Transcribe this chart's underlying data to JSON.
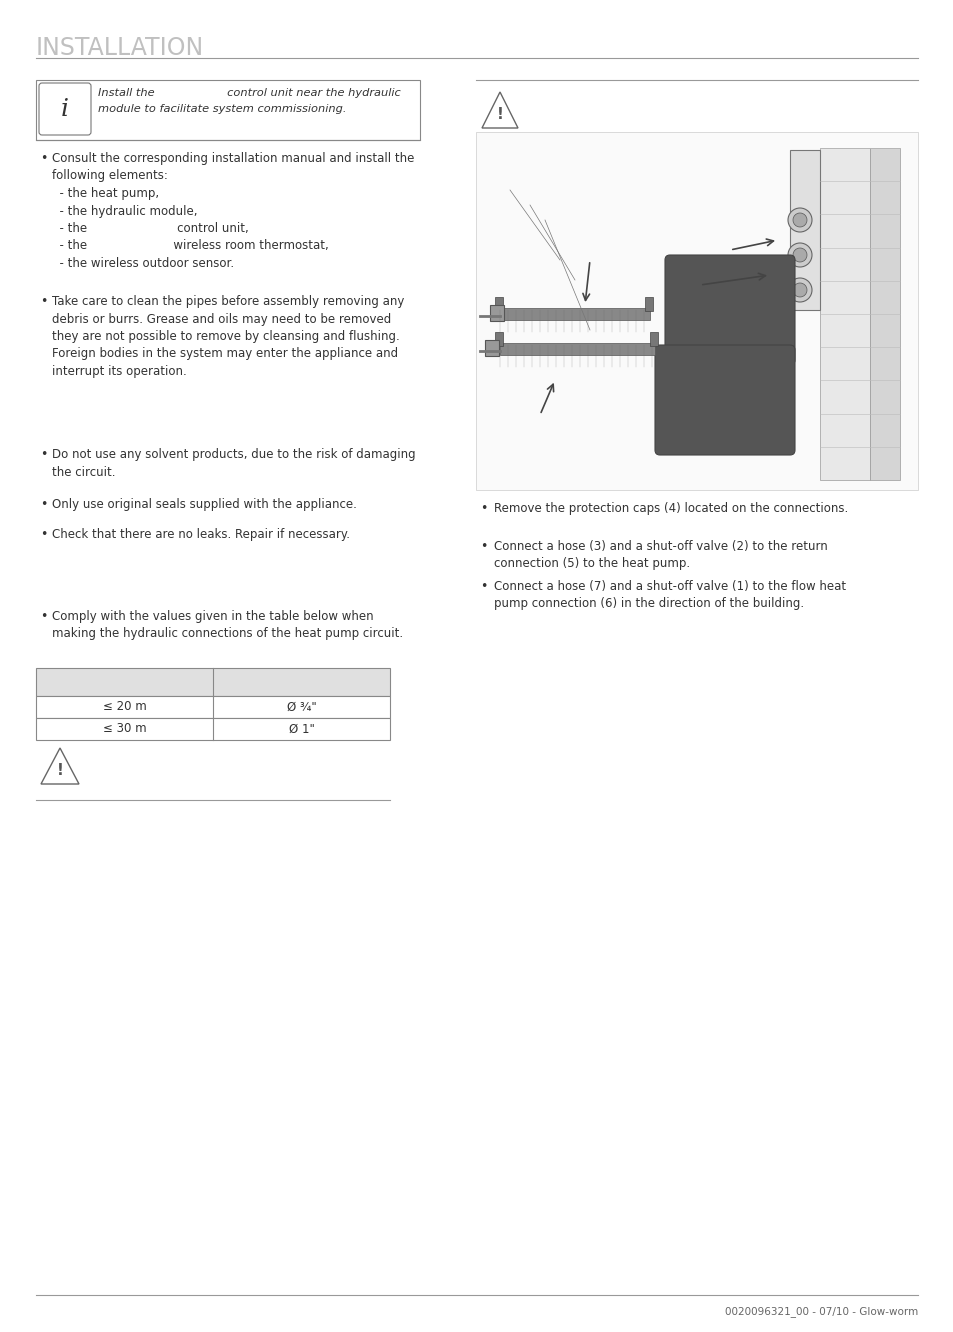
{
  "title": "INSTALLATION",
  "title_color": "#c0c0c0",
  "title_fontsize": 17,
  "footer_text": "0020096321_00 - 07/10 - Glow-worm",
  "info_box_text_line1": "Install the                    control unit near the hydraulic",
  "info_box_text_line2": "module to facilitate system commissioning.",
  "bullet_points_left": [
    {
      "bullet": true,
      "text": "Consult the corresponding installation manual and install the\nfollowing elements:\n  - the heat pump,\n  - the hydraulic module,\n  - the                        control unit,\n  - the                       wireless room thermostat,\n  - the wireless outdoor sensor."
    },
    {
      "bullet": true,
      "text": "Take care to clean the pipes before assembly removing any\ndebris or burrs. Grease and oils may need to be removed\nthey are not possible to remove by cleansing and flushing.\nForeign bodies in the system may enter the appliance and\ninterrupt its operation."
    },
    {
      "bullet": true,
      "text": "Do not use any solvent products, due to the risk of damaging\nthe circuit."
    },
    {
      "bullet": true,
      "text": "Only use original seals supplied with the appliance."
    },
    {
      "bullet": true,
      "text": "Check that there are no leaks. Repair if necessary."
    },
    {
      "bullet": true,
      "text": "Comply with the values given in the table below when\nmaking the hydraulic connections of the heat pump circuit."
    }
  ],
  "bullet_points_right": [
    "Remove the protection caps (4) located on the connections.",
    "Connect a hose (3) and a shut-off valve (2) to the return\nconnection (5) to the heat pump.",
    "Connect a hose (7) and a shut-off valve (1) to the flow heat\npump connection (6) in the direction of the building."
  ],
  "table_rows": [
    [
      "≤ 20 m",
      "Ø ¾\""
    ],
    [
      "≤ 30 m",
      "Ø 1\""
    ]
  ],
  "bg_color": "#ffffff",
  "text_color": "#333333",
  "line_color": "#aaaaaa"
}
